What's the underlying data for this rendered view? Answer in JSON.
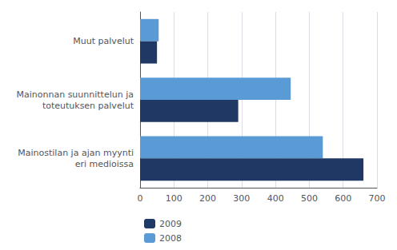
{
  "chart_data": {
    "type": "bar",
    "orientation": "horizontal",
    "categories": [
      "Mainostilan ja ajan myynti\neri medioissa",
      "Mainonnan suunnittelun ja\ntoteutuksen palvelut",
      "Muut palvelut"
    ],
    "series": [
      {
        "name": "2009",
        "color": "#1f3864",
        "values": [
          660,
          290,
          50
        ]
      },
      {
        "name": "2008",
        "color": "#5b9bd5",
        "values": [
          540,
          445,
          55
        ]
      }
    ],
    "xlim": [
      0,
      700
    ],
    "xticks": [
      0,
      100,
      200,
      300,
      400,
      500,
      600,
      700
    ],
    "grid": true,
    "legend": "bottom"
  }
}
